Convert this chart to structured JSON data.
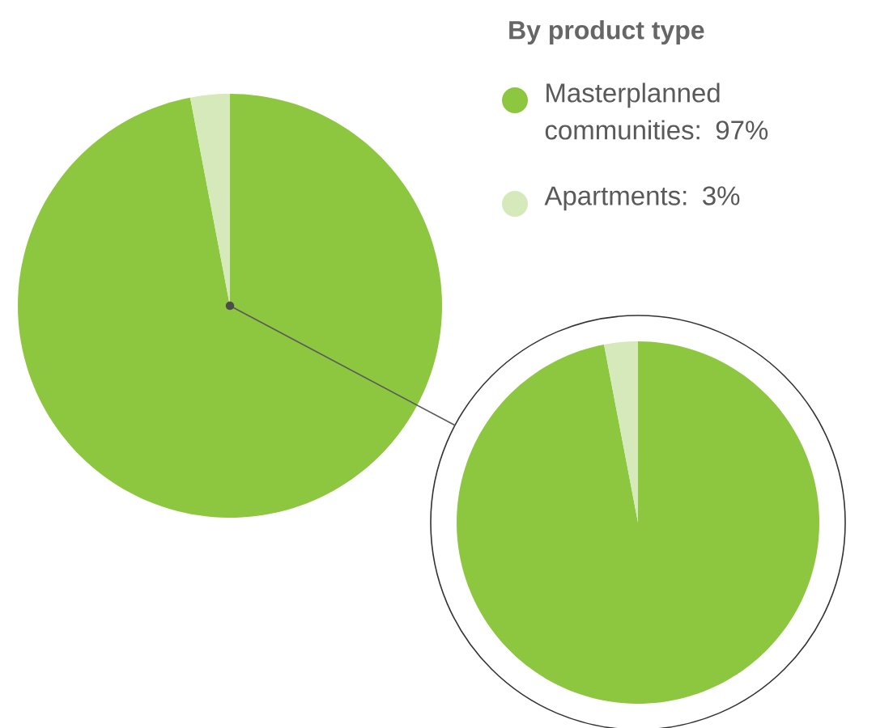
{
  "chart_data": [
    {
      "type": "pie",
      "legend_title": "By product type",
      "categories": [
        "Masterplanned communities: 97%",
        "Apartments: 3%"
      ],
      "values": [
        97,
        3
      ],
      "colors": [
        "#8dc63f",
        "#d6e9bb"
      ],
      "legend": "top right"
    },
    {
      "type": "pie",
      "categories": [
        null,
        null
      ],
      "values": [
        97,
        3
      ],
      "colors": [
        "#8dc63f",
        "#d6e9bb"
      ]
    }
  ]
}
